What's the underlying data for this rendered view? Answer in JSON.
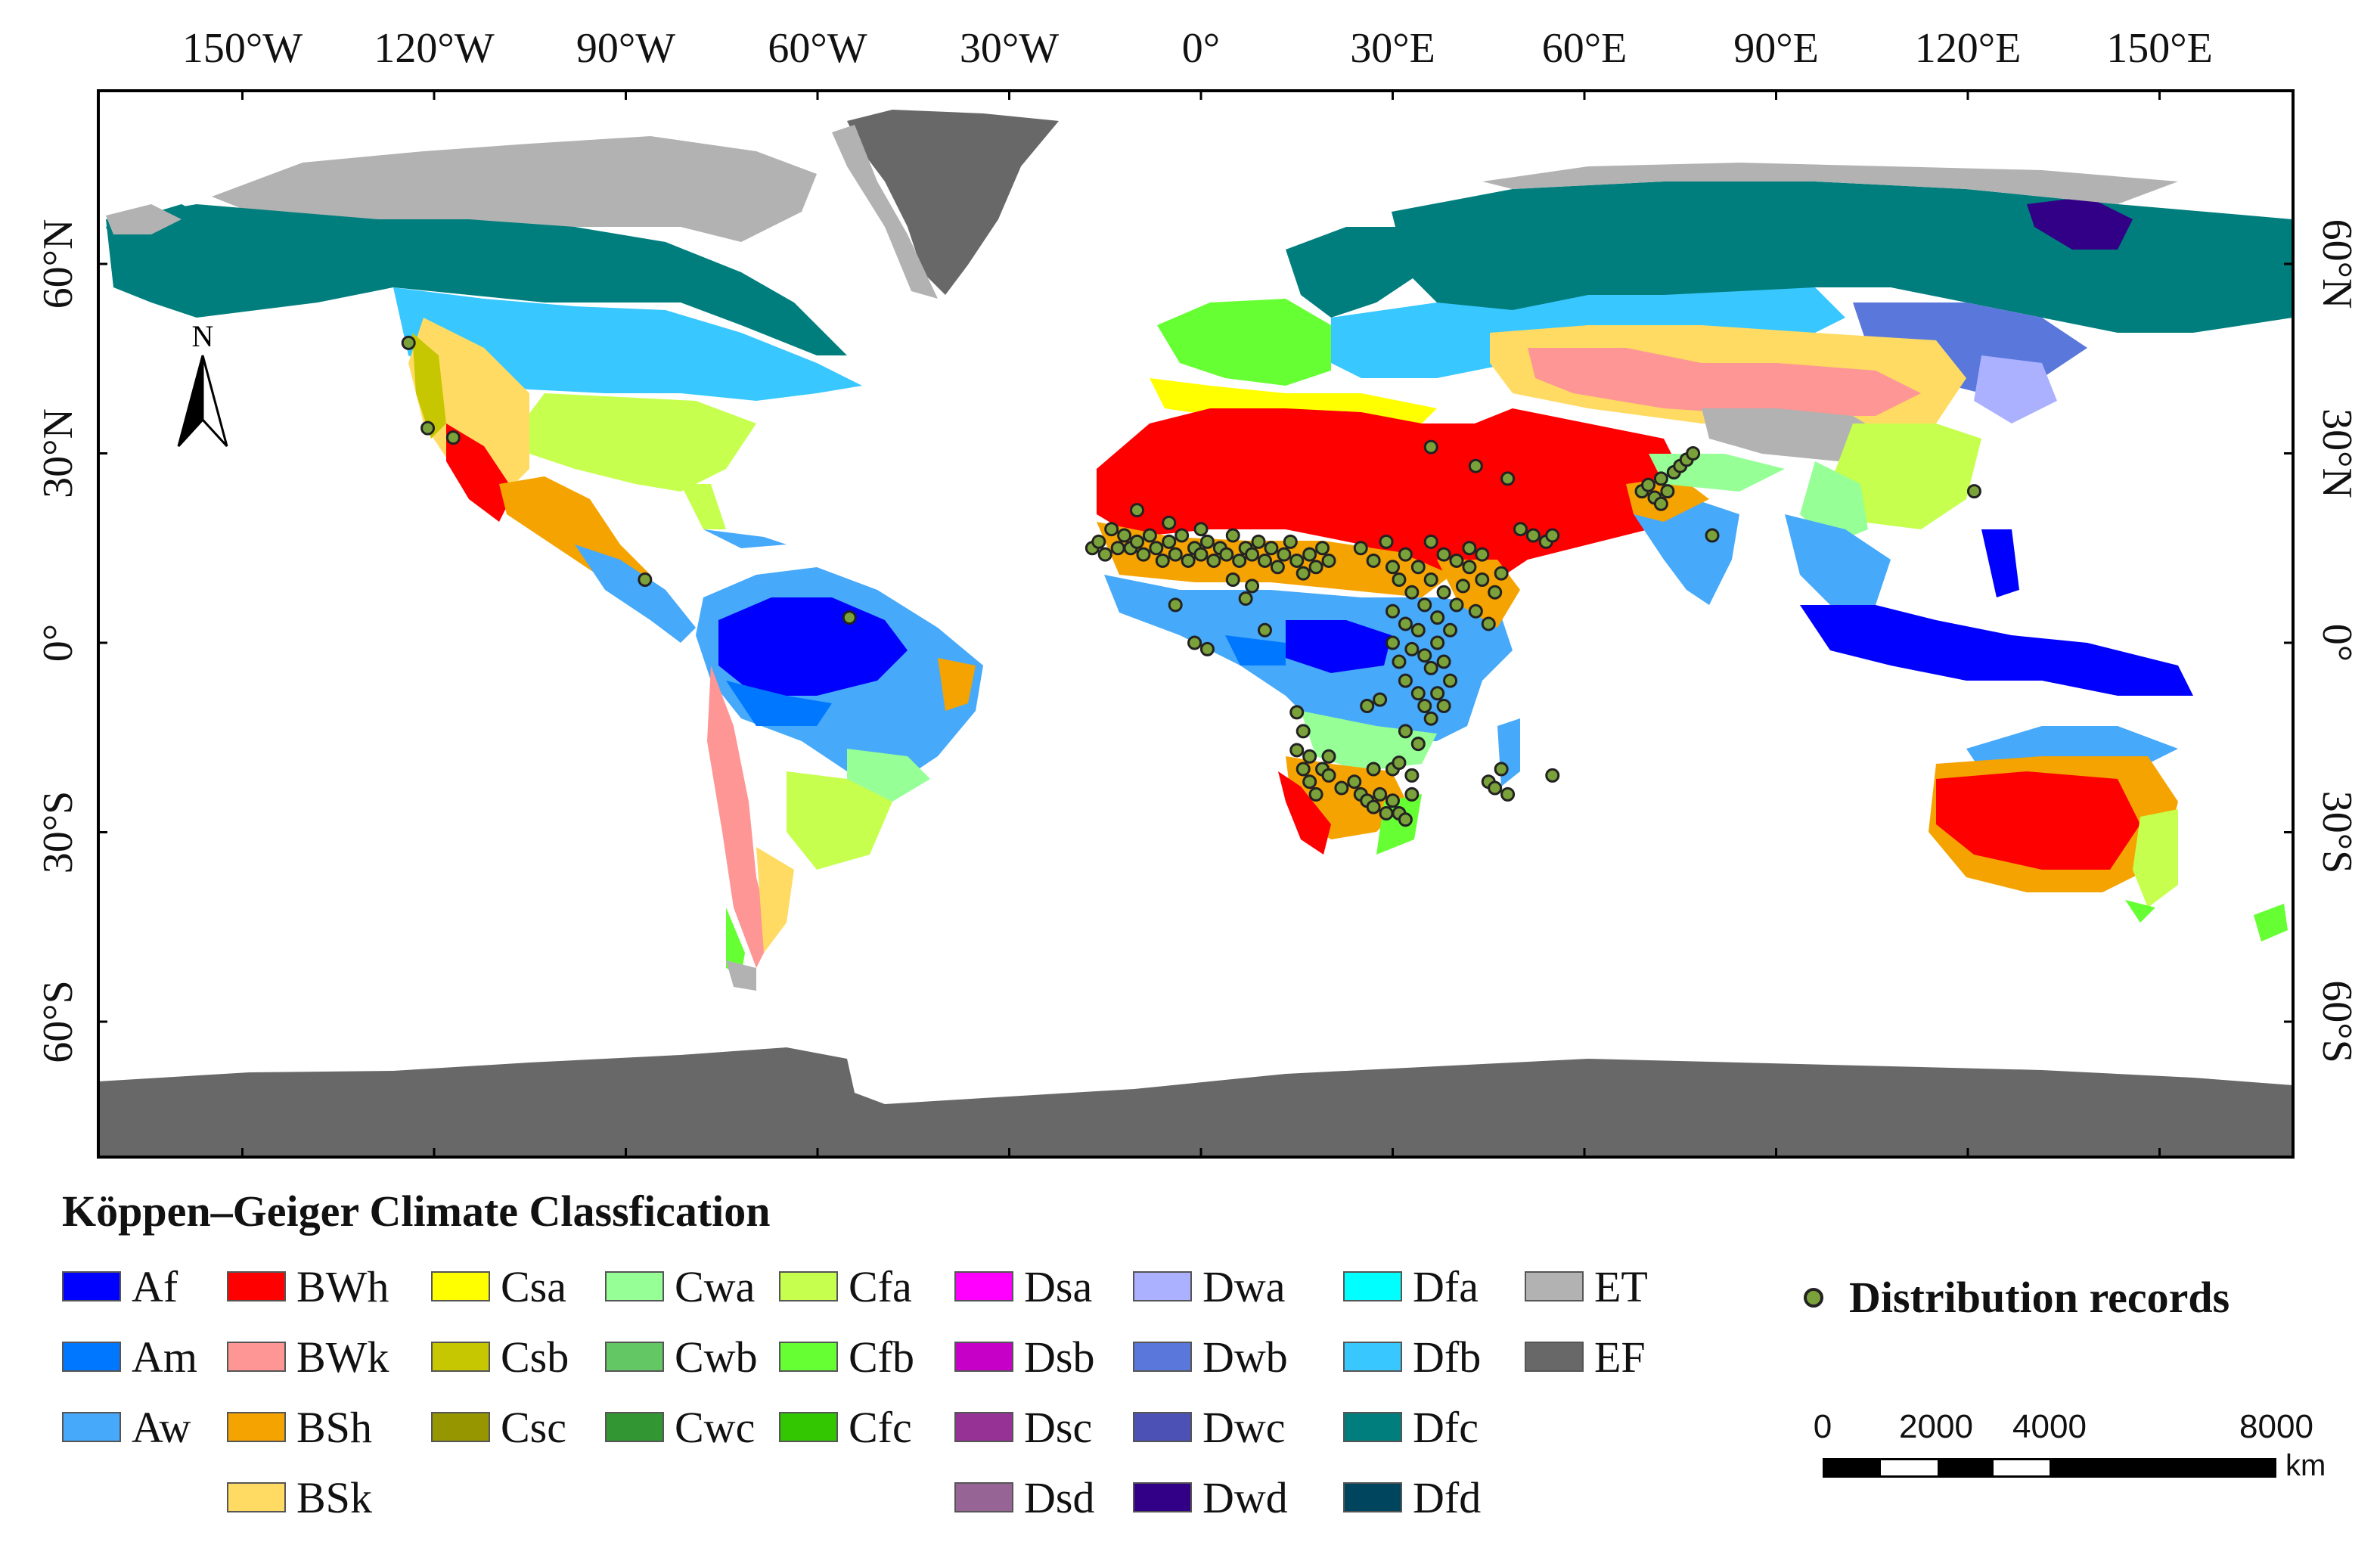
{
  "lon_ticks": [
    "150°W",
    "120°W",
    "90°W",
    "60°W",
    "30°W",
    "0°",
    "30°E",
    "60°E",
    "90°E",
    "120°E",
    "150°E"
  ],
  "lat_ticks": [
    "60°N",
    "30°N",
    "0°",
    "30°S",
    "60°S"
  ],
  "north_arrow": "N",
  "legend": {
    "title": "Köppen–Geiger Climate Classfication",
    "classes": [
      {
        "code": "Af",
        "color": "#0000fe"
      },
      {
        "code": "Am",
        "color": "#0077ff"
      },
      {
        "code": "Aw",
        "color": "#46a9fa"
      },
      {
        "code": "BWh",
        "color": "#fe0000"
      },
      {
        "code": "BWk",
        "color": "#fe9695"
      },
      {
        "code": "BSh",
        "color": "#f5a301"
      },
      {
        "code": "BSk",
        "color": "#ffdb63"
      },
      {
        "code": "Csa",
        "color": "#ffff00"
      },
      {
        "code": "Csb",
        "color": "#c6c700"
      },
      {
        "code": "Csc",
        "color": "#969600"
      },
      {
        "code": "Cwa",
        "color": "#96ff96"
      },
      {
        "code": "Cwb",
        "color": "#63c764"
      },
      {
        "code": "Cwc",
        "color": "#329633"
      },
      {
        "code": "Cfa",
        "color": "#c6ff4e"
      },
      {
        "code": "Cfb",
        "color": "#66ff33"
      },
      {
        "code": "Cfc",
        "color": "#33c701"
      },
      {
        "code": "Dsa",
        "color": "#ff00fe"
      },
      {
        "code": "Dsb",
        "color": "#c600c7"
      },
      {
        "code": "Dsc",
        "color": "#963295"
      },
      {
        "code": "Dsd",
        "color": "#966495"
      },
      {
        "code": "Dwa",
        "color": "#abb1ff"
      },
      {
        "code": "Dwb",
        "color": "#5a77db"
      },
      {
        "code": "Dwc",
        "color": "#4c51b5"
      },
      {
        "code": "Dwd",
        "color": "#320087"
      },
      {
        "code": "Dfa",
        "color": "#00ffff"
      },
      {
        "code": "Dfb",
        "color": "#38c7ff"
      },
      {
        "code": "Dfc",
        "color": "#007e7d"
      },
      {
        "code": "Dfd",
        "color": "#00455e"
      },
      {
        "code": "ET",
        "color": "#b2b2b2"
      },
      {
        "code": "EF",
        "color": "#686868"
      }
    ]
  },
  "distribution": {
    "label": "Distribution records",
    "dot_color": "#7ba23a"
  },
  "scale_bar": {
    "ticks": [
      "0",
      "2000",
      "4000",
      "8000"
    ],
    "unit": "km"
  },
  "records": [
    [
      -124,
      47.5
    ],
    [
      -121,
      34
    ],
    [
      -117,
      32.5
    ],
    [
      -87,
      10
    ],
    [
      -55,
      4
    ],
    [
      -17,
      15
    ],
    [
      -16,
      16
    ],
    [
      -15,
      14
    ],
    [
      -14,
      18
    ],
    [
      -13,
      15
    ],
    [
      -12,
      17
    ],
    [
      -11,
      15
    ],
    [
      -10,
      16
    ],
    [
      -9,
      14
    ],
    [
      -8,
      17
    ],
    [
      -7,
      15
    ],
    [
      -6,
      13
    ],
    [
      -5,
      16
    ],
    [
      -4,
      14
    ],
    [
      -3,
      17
    ],
    [
      -2,
      13
    ],
    [
      -1,
      15
    ],
    [
      0,
      14
    ],
    [
      1,
      16
    ],
    [
      2,
      13
    ],
    [
      3,
      15
    ],
    [
      4,
      14
    ],
    [
      5,
      17
    ],
    [
      6,
      13
    ],
    [
      7,
      15
    ],
    [
      8,
      14
    ],
    [
      9,
      16
    ],
    [
      10,
      13
    ],
    [
      11,
      15
    ],
    [
      12,
      12
    ],
    [
      13,
      14
    ],
    [
      14,
      16
    ],
    [
      15,
      13
    ],
    [
      16,
      11
    ],
    [
      17,
      14
    ],
    [
      18,
      12
    ],
    [
      19,
      15
    ],
    [
      20,
      13
    ],
    [
      -10,
      21
    ],
    [
      -5,
      19
    ],
    [
      0,
      18
    ],
    [
      5,
      10
    ],
    [
      7,
      7
    ],
    [
      8,
      9
    ],
    [
      -4,
      6
    ],
    [
      -1,
      0
    ],
    [
      1,
      -1
    ],
    [
      10,
      2
    ],
    [
      25,
      15
    ],
    [
      27,
      13
    ],
    [
      29,
      16
    ],
    [
      30,
      12
    ],
    [
      31,
      10
    ],
    [
      32,
      14
    ],
    [
      33,
      8
    ],
    [
      34,
      12
    ],
    [
      35,
      6
    ],
    [
      36,
      10
    ],
    [
      37,
      4
    ],
    [
      38,
      8
    ],
    [
      39,
      2
    ],
    [
      40,
      6
    ],
    [
      41,
      9
    ],
    [
      42,
      12
    ],
    [
      43,
      5
    ],
    [
      44,
      10
    ],
    [
      45,
      3
    ],
    [
      46,
      8
    ],
    [
      47,
      11
    ],
    [
      36,
      16
    ],
    [
      38,
      14
    ],
    [
      40,
      13
    ],
    [
      42,
      15
    ],
    [
      44,
      14
    ],
    [
      34,
      2
    ],
    [
      35,
      -2
    ],
    [
      36,
      -4
    ],
    [
      37,
      0
    ],
    [
      38,
      -3
    ],
    [
      39,
      -6
    ],
    [
      30,
      0
    ],
    [
      31,
      -3
    ],
    [
      32,
      -6
    ],
    [
      33,
      -1
    ],
    [
      34,
      -8
    ],
    [
      35,
      -10
    ],
    [
      36,
      -12
    ],
    [
      37,
      -8
    ],
    [
      38,
      -10
    ],
    [
      32,
      3
    ],
    [
      30,
      5
    ],
    [
      28,
      -9
    ],
    [
      26,
      -10
    ],
    [
      15,
      -11
    ],
    [
      16,
      -14
    ],
    [
      15,
      -17
    ],
    [
      17,
      -18
    ],
    [
      16,
      -20
    ],
    [
      17,
      -22
    ],
    [
      18,
      -24
    ],
    [
      19,
      -20
    ],
    [
      20,
      -21
    ],
    [
      22,
      -23
    ],
    [
      24,
      -22
    ],
    [
      25,
      -24
    ],
    [
      26,
      -25
    ],
    [
      27,
      -26
    ],
    [
      28,
      -24
    ],
    [
      29,
      -27
    ],
    [
      30,
      -25
    ],
    [
      31,
      -27
    ],
    [
      32,
      -28
    ],
    [
      33,
      -24
    ],
    [
      30,
      -20
    ],
    [
      27,
      -20
    ],
    [
      31,
      -19
    ],
    [
      33,
      -21
    ],
    [
      34,
      -16
    ],
    [
      32,
      -14
    ],
    [
      20,
      -18
    ],
    [
      47,
      -20
    ],
    [
      45,
      -22
    ],
    [
      46,
      -23
    ],
    [
      48,
      -24
    ],
    [
      55,
      -21
    ],
    [
      36,
      31
    ],
    [
      43,
      28
    ],
    [
      48,
      26
    ],
    [
      50,
      18
    ],
    [
      52,
      17
    ],
    [
      54,
      16
    ],
    [
      55,
      17
    ],
    [
      69,
      24
    ],
    [
      70,
      25
    ],
    [
      71,
      23
    ],
    [
      72,
      26
    ],
    [
      73,
      24
    ],
    [
      74,
      27
    ],
    [
      75,
      28
    ],
    [
      76,
      29
    ],
    [
      77,
      30
    ],
    [
      72,
      22
    ],
    [
      80,
      17
    ],
    [
      121,
      24
    ]
  ]
}
